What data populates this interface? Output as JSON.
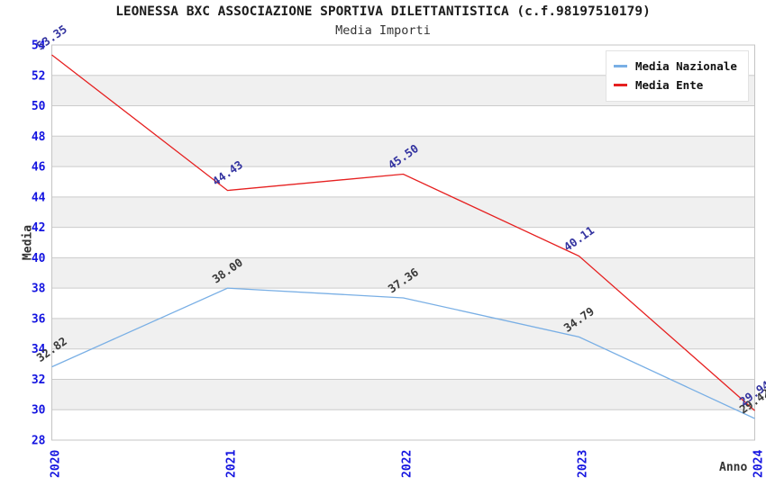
{
  "title": "LEONESSA BXC ASSOCIAZIONE SPORTIVA DILETTANTISTICA (c.f.98197510179)",
  "subtitle": "Media Importi",
  "legend": {
    "items": [
      {
        "label": "Media Nazionale",
        "color": "#79afe5"
      },
      {
        "label": "Media Ente",
        "color": "#e62020"
      }
    ]
  },
  "chart_data": {
    "type": "line",
    "title": "LEONESSA BXC ASSOCIAZIONE SPORTIVA DILETTANTISTICA (c.f.98197510179)",
    "subtitle": "Media Importi",
    "x": [
      2020,
      2021,
      2022,
      2023,
      2024
    ],
    "x_tick_labels": [
      "2020",
      "2021",
      "2022",
      "2023",
      "2024"
    ],
    "series": [
      {
        "name": "Media Nazionale",
        "color": "#79afe5",
        "label_color": "#3a3a3a",
        "values": [
          32.82,
          38.0,
          37.36,
          34.79,
          29.42
        ],
        "labels": [
          "32.82",
          "38.00",
          "37.36",
          "34.79",
          "29.42"
        ]
      },
      {
        "name": "Media Ente",
        "color": "#e62020",
        "label_color": "#3333a0",
        "values": [
          53.35,
          44.43,
          45.5,
          40.11,
          29.94
        ],
        "labels": [
          "53.35",
          "44.43",
          "45.50",
          "40.11",
          "29.94"
        ]
      }
    ],
    "xlabel": "Anno",
    "ylabel": "Media",
    "ylim": [
      28,
      54
    ],
    "ytick_step": 2,
    "grid": true,
    "legend_position": "top-right",
    "styles": {
      "tick_color": "#1414e0",
      "grid_color": "#cccccc",
      "band_color": "#f0f0f0",
      "border_color": "#c4c4c4",
      "title_color": "#1c1c1c",
      "axis_title_color": "#333333"
    }
  }
}
